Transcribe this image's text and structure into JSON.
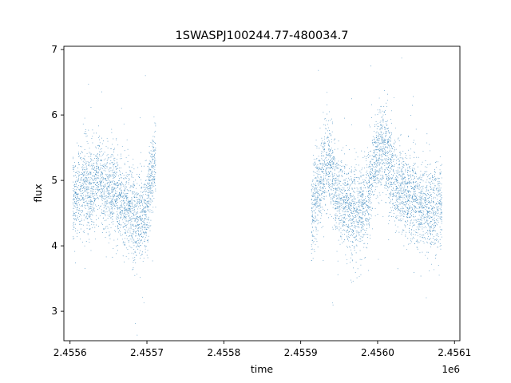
{
  "chart_data": {
    "type": "scatter",
    "title": "1SWASPJ100244.77-480034.7",
    "xlabel": "time",
    "ylabel": "flux",
    "x_offset_label": "1e6",
    "xlim": [
      2455592,
      2456107
    ],
    "ylim": [
      2.55,
      7.05
    ],
    "xticks": [
      2455600,
      2455700,
      2455800,
      2455900,
      2456000,
      2456100
    ],
    "xtick_labels": [
      "2.4556",
      "2.4557",
      "2.4558",
      "2.4559",
      "2.4560",
      "2.4561"
    ],
    "yticks": [
      3,
      4,
      5,
      6,
      7
    ],
    "ytick_labels": [
      "3",
      "4",
      "5",
      "6",
      "7"
    ],
    "grid": false,
    "marker_color": "#1f77b4",
    "series": [
      {
        "segments": [
          {
            "time_start": 2455604,
            "time_end": 2455712,
            "flux_center": 4.75,
            "flux_spread": 0.33
          },
          {
            "time_start": 2455914,
            "time_end": 2456084,
            "flux_center": 4.75,
            "flux_spread": 0.33
          }
        ],
        "points": [
          [
            2455604,
            4.7
          ],
          [
            2455612,
            4.85
          ],
          [
            2455620,
            4.95
          ],
          [
            2455626,
            4.8
          ],
          [
            2455634,
            5.0
          ],
          [
            2455642,
            4.9
          ],
          [
            2455650,
            4.85
          ],
          [
            2455658,
            4.8
          ],
          [
            2455664,
            4.7
          ],
          [
            2455672,
            4.6
          ],
          [
            2455680,
            4.5
          ],
          [
            2455686,
            4.4
          ],
          [
            2455692,
            4.45
          ],
          [
            2455700,
            4.55
          ],
          [
            2455706,
            5.2
          ],
          [
            2455711,
            5.3
          ],
          [
            2455914,
            4.5
          ],
          [
            2455920,
            4.8
          ],
          [
            2455926,
            5.0
          ],
          [
            2455932,
            5.2
          ],
          [
            2455936,
            5.3
          ],
          [
            2455942,
            5.1
          ],
          [
            2455948,
            4.75
          ],
          [
            2455956,
            4.65
          ],
          [
            2455964,
            4.55
          ],
          [
            2455972,
            4.5
          ],
          [
            2455980,
            4.6
          ],
          [
            2455988,
            4.7
          ],
          [
            2455994,
            5.2
          ],
          [
            2456000,
            5.4
          ],
          [
            2456006,
            5.5
          ],
          [
            2456012,
            5.35
          ],
          [
            2456018,
            5.1
          ],
          [
            2456026,
            4.9
          ],
          [
            2456034,
            4.8
          ],
          [
            2456042,
            4.75
          ],
          [
            2456050,
            4.7
          ],
          [
            2456058,
            4.6
          ],
          [
            2456066,
            4.55
          ],
          [
            2456074,
            4.6
          ],
          [
            2456084,
            4.65
          ]
        ]
      }
    ]
  }
}
